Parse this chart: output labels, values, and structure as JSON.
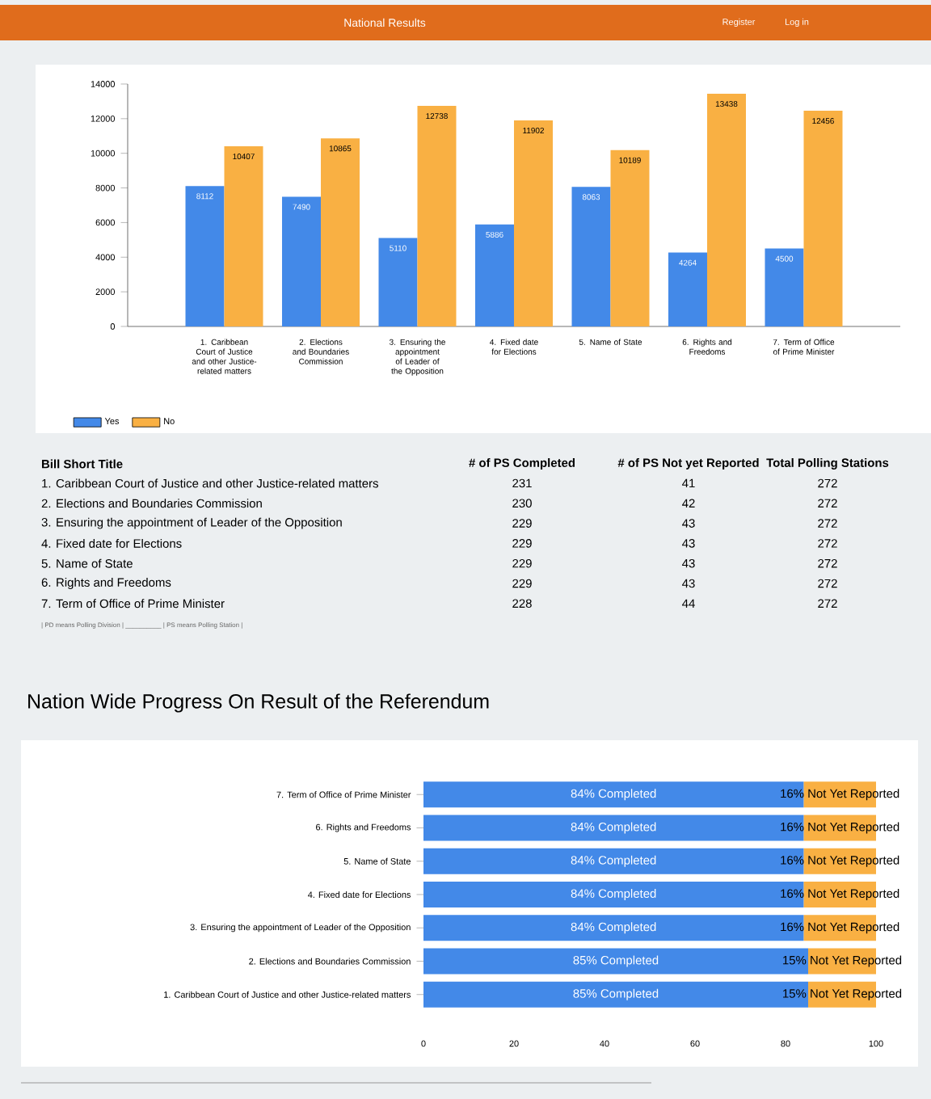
{
  "chart_data": [
    {
      "type": "other",
      "annotations": [
        "National Results",
        "Register",
        "Log in"
      ]
    },
    {
      "type": "bar",
      "categories": [
        "1. Caribbean Court of Justice and other Justice-related matters",
        "2. Elections and Boundaries Commission",
        "3. Ensuring the appointment of Leader of the Opposition",
        "4. Fixed date for Elections",
        "5. Name of State",
        "6. Rights and Freedoms",
        "7. Term of Office of Prime Minister"
      ],
      "series": [
        {
          "name": "Yes",
          "color": "#4389e8",
          "values": [
            8112,
            7490,
            5110,
            5886,
            8063,
            4264,
            4500
          ]
        },
        {
          "name": "No",
          "color": "#f9b043",
          "values": [
            10407,
            10865,
            12738,
            11902,
            10189,
            13438,
            12456
          ]
        }
      ],
      "ylim": [
        0,
        14000
      ],
      "yticks": [
        0,
        2000,
        4000,
        6000,
        8000,
        10000,
        12000,
        14000
      ],
      "data_labels": true,
      "legend": "bottom left"
    },
    {
      "type": "other",
      "categories": [
        "1. Caribbean Court of Justice and other Justice-related matters",
        "2. Elections and Boundaries Commission",
        "3. Ensuring the appointment of Leader of the Opposition",
        "4. Fixed date for Elections",
        "5. Name of State",
        "6. Rights and Freedoms",
        "7. Term of Office of Prime Minister"
      ],
      "series": [
        {
          "name": "# of PS Completed",
          "values": [
            231,
            230,
            229,
            229,
            229,
            229,
            228
          ]
        },
        {
          "name": "# of PS Not yet Reported",
          "values": [
            41,
            42,
            43,
            43,
            43,
            43,
            44
          ]
        },
        {
          "name": "Total Polling Stations",
          "values": [
            272,
            272,
            272,
            272,
            272,
            272,
            272
          ]
        }
      ],
      "data_labels": true,
      "annotations": [
        "Bill Short Title",
        "| PD means Polling Division | __________ | PS means Polling Station |"
      ]
    },
    {
      "type": "bar",
      "title": "Nation Wide Progress On Result of the Referendum",
      "orientation": "horizontal",
      "stacked": true,
      "categories": [
        "7. Term of Office of Prime Minister",
        "6. Rights and Freedoms",
        "5. Name of State",
        "4. Fixed date for Elections",
        "3. Ensuring the appointment of Leader of the Opposition",
        "2. Elections and Boundaries Commission",
        "1. Caribbean Court of Justice and other Justice-related matters"
      ],
      "series": [
        {
          "color": "#4389e8",
          "values": [
            84,
            84,
            84,
            84,
            84,
            85,
            85
          ],
          "value_labels": [
            "84% Completed",
            "84% Completed",
            "84% Completed",
            "84% Completed",
            "84% Completed",
            "85% Completed",
            "85% Completed"
          ]
        },
        {
          "color": "#f9b043",
          "values": [
            16,
            16,
            16,
            16,
            16,
            15,
            15
          ],
          "value_labels": [
            "16% Not Yet Reported",
            "16% Not Yet Reported",
            "16% Not Yet Reported",
            "16% Not Yet Reported",
            "16% Not Yet Reported",
            "15% Not Yet Reported",
            "15% Not Yet Reported"
          ]
        }
      ],
      "xlim": [
        0,
        100
      ],
      "xticks": [
        0,
        20,
        40,
        60,
        80,
        100
      ]
    }
  ]
}
